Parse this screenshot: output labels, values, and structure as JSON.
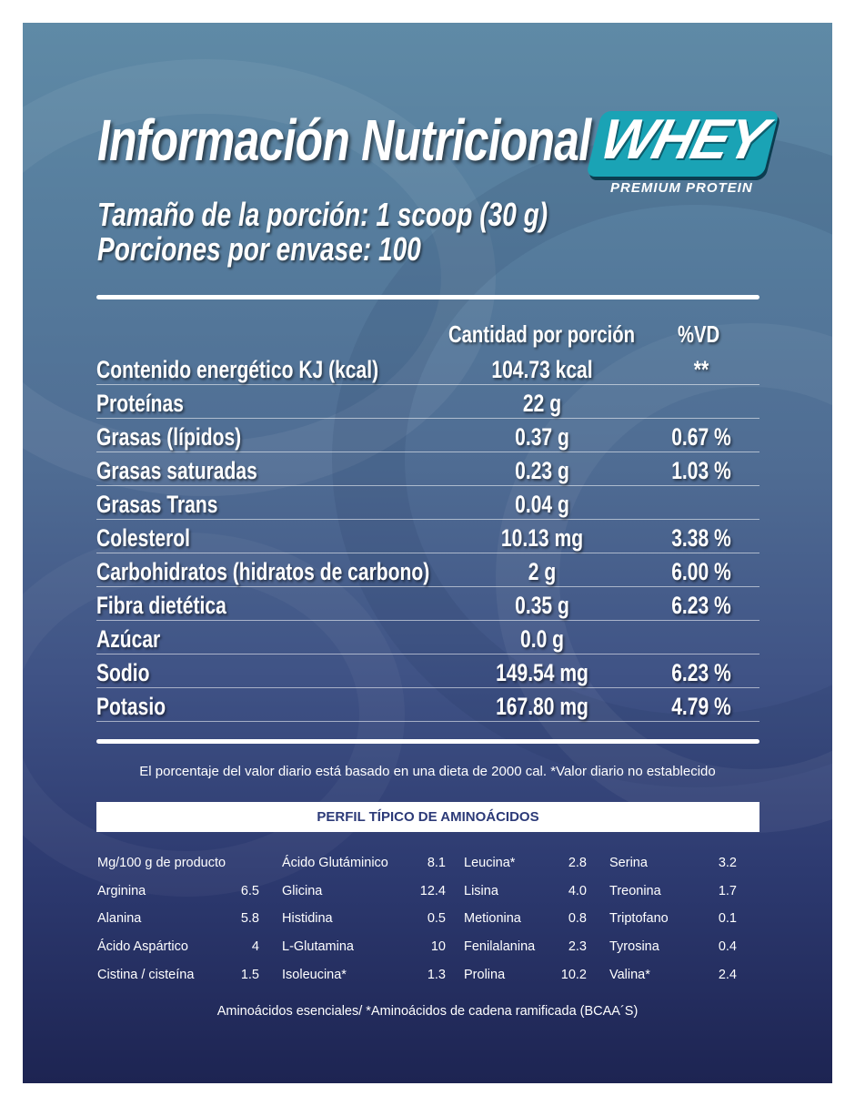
{
  "title": "Información Nutricional",
  "serving_size": "Tamaño de la porción: 1 scoop (30 g)",
  "servings_per_container": "Porciones por envase: 100",
  "logo": {
    "word": "WHEY",
    "tagline": "PREMIUM PROTEIN",
    "color": "#1aa3b5"
  },
  "table": {
    "col_amount": "Cantidad por porción",
    "col_dv": "%VD",
    "rows": [
      {
        "name": "Contenido energético KJ (kcal)",
        "amount": "104.73   kcal",
        "dv": "**"
      },
      {
        "name": "Proteínas",
        "amount": "22 g",
        "dv": ""
      },
      {
        "name": "Grasas (lípidos)",
        "amount": "0.37 g",
        "dv": "0.67 %"
      },
      {
        "name": "Grasas saturadas",
        "amount": "0.23 g",
        "dv": "1.03 %"
      },
      {
        "name": "Grasas Trans",
        "amount": "0.04 g",
        "dv": ""
      },
      {
        "name": "Colesterol",
        "amount": "10.13 mg",
        "dv": "3.38 %"
      },
      {
        "name": "Carbohidratos (hidratos de carbono)",
        "amount": "2 g",
        "dv": "6.00 %"
      },
      {
        "name": "Fibra dietética",
        "amount": "0.35 g",
        "dv": "6.23 %"
      },
      {
        "name": "Azúcar",
        "amount": "0.0 g",
        "dv": ""
      },
      {
        "name": "Sodio",
        "amount": "149.54 mg",
        "dv": "6.23 %"
      },
      {
        "name": "Potasio",
        "amount": "167.80 mg",
        "dv": "4.79 %"
      }
    ]
  },
  "footnote": "El porcentaje del valor diario está basado en una dieta de 2000 cal.  *Valor diario no establecido",
  "amino": {
    "title": "PERFIL TÍPICO DE AMINOÁCIDOS",
    "unit_label": "Mg/100 g de producto",
    "col1": [
      {
        "name": "Arginina",
        "value": "6.5"
      },
      {
        "name": "Alanina",
        "value": "5.8"
      },
      {
        "name": "Ácido Aspártico",
        "value": "4"
      },
      {
        "name": "Cistina / cisteína",
        "value": "1.5"
      }
    ],
    "col2": [
      {
        "name": "Ácido Glutáminico",
        "value": "8.1"
      },
      {
        "name": "Glicina",
        "value": "12.4"
      },
      {
        "name": "Histidina",
        "value": "0.5"
      },
      {
        "name": "L-Glutamina",
        "value": "10"
      },
      {
        "name": "Isoleucina*",
        "value": "1.3"
      }
    ],
    "col3": [
      {
        "name": "Leucina*",
        "value": "2.8"
      },
      {
        "name": "Lisina",
        "value": "4.0"
      },
      {
        "name": "Metionina",
        "value": "0.8"
      },
      {
        "name": "Fenilalanina",
        "value": "2.3"
      },
      {
        "name": "Prolina",
        "value": "10.2"
      }
    ],
    "col4": [
      {
        "name": "Serina",
        "value": "3.2"
      },
      {
        "name": "Treonina",
        "value": "1.7"
      },
      {
        "name": "Triptofano",
        "value": "0.1"
      },
      {
        "name": "Tyrosina",
        "value": "0.4"
      },
      {
        "name": "Valina*",
        "value": "2.4"
      }
    ],
    "footer": "Aminoácidos esenciales/ *Aminoácidos de cadena ramificada (BCAA´S)"
  }
}
